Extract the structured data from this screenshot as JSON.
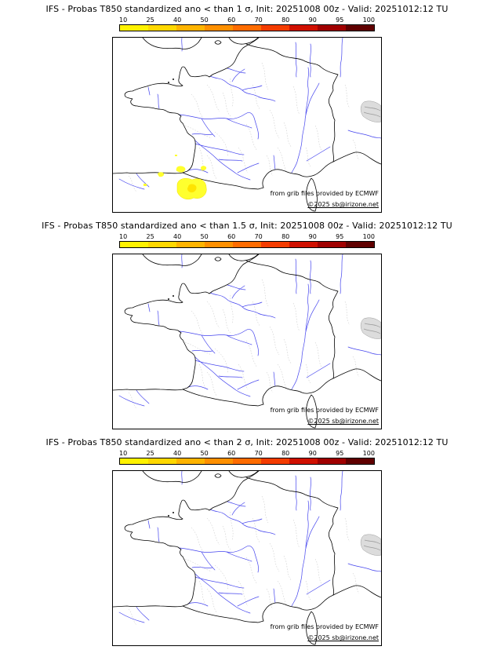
{
  "colorbar": {
    "ticks": [
      "10",
      "25",
      "40",
      "50",
      "60",
      "70",
      "80",
      "90",
      "95",
      "100"
    ],
    "segments": [
      "#fff200",
      "#ffd800",
      "#ffb400",
      "#ff9000",
      "#ff6c00",
      "#f43c00",
      "#d01000",
      "#a00000",
      "#600000"
    ]
  },
  "panels": [
    {
      "title": "IFS - Probas T850  standardized ano < than 1 σ, Init: 20251008 00z - Valid: 20251012:12 TU",
      "attribution": "from grib files provided by ECMWF",
      "copyright": "©2025 sb@irizone.net"
    },
    {
      "title": "IFS - Probas T850  standardized ano < than 1.5 σ, Init: 20251008 00z - Valid: 20251012:12 TU",
      "attribution": "from grib files provided by ECMWF",
      "copyright": "©2025 sb@irizone.net"
    },
    {
      "title": "IFS - Probas T850  standardized ano < than 2 σ, Init: 20251008 00z - Valid: 20251012:12 TU",
      "attribution": "from grib files provided by ECMWF",
      "copyright": "©2025 sb@irizone.net"
    }
  ],
  "map": {
    "coast_color": "#000000",
    "river_color": "#4444ee",
    "boundary_color": "#c3c3c3",
    "anomaly_color": "#ffff2e",
    "anomaly_core_color": "#ffe400"
  }
}
